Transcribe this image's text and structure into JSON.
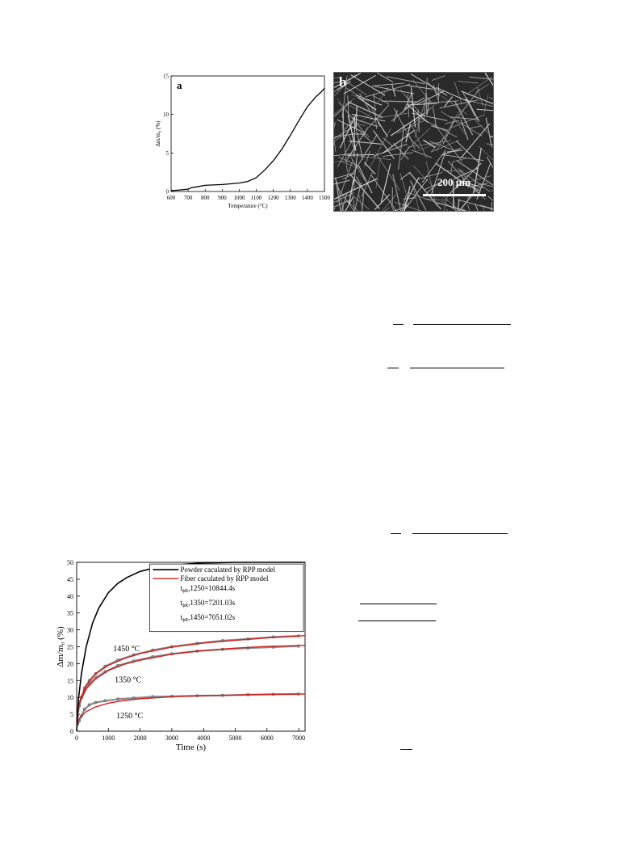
{
  "colors": {
    "fiber_red": "#d62020",
    "powder_black": "#000000",
    "exp_gray": "#8a8a8a"
  },
  "photo": {
    "label": "b",
    "scale_text": "200 µm"
  },
  "chart_data": [
    {
      "type": "line",
      "label": "a",
      "xlabel": "Temperature (°C)",
      "ylabel": "Δm/m₀ (%)",
      "xlim": [
        600,
        1500
      ],
      "ylim": [
        0,
        15
      ],
      "xticks": [
        600,
        700,
        800,
        900,
        1000,
        1100,
        1200,
        1300,
        1400,
        1500
      ],
      "yticks": [
        0,
        5,
        10,
        15
      ],
      "series": [
        {
          "x": [
            600,
            650,
            700,
            720,
            750,
            800,
            850,
            900,
            950,
            1000,
            1050,
            1100,
            1150,
            1200,
            1250,
            1300,
            1350,
            1400,
            1450,
            1480,
            1500
          ],
          "y": [
            0.1,
            0.2,
            0.3,
            0.5,
            0.6,
            0.8,
            0.85,
            0.9,
            1.0,
            1.1,
            1.3,
            1.8,
            2.8,
            4.0,
            5.5,
            7.3,
            9.2,
            11.0,
            12.3,
            12.9,
            13.4
          ]
        }
      ]
    },
    {
      "type": "line",
      "xlabel": "Time (s)",
      "ylabel": "Δm/m₀ (%)",
      "xlim": [
        0,
        7200
      ],
      "ylim": [
        0,
        50
      ],
      "xticks": [
        0,
        1000,
        2000,
        3000,
        4000,
        5000,
        6000,
        7000
      ],
      "yticks": [
        0,
        5,
        10,
        15,
        20,
        25,
        30,
        35,
        40,
        45,
        50
      ],
      "legend": {
        "placement": "top-right",
        "entries": [
          "Powder caculated by RPP model",
          "Fiber caculated by RPP model"
        ],
        "params": [
          "t",
          "ϕR",
          ",1250=10844.4s",
          ",1350=7201.03s",
          ",1450=7051.02s"
        ]
      },
      "annotations": [
        "1450 °C",
        "1350 °C",
        "1250 °C"
      ],
      "powder": {
        "x": [
          0,
          50,
          150,
          300,
          500,
          700,
          1000,
          1300,
          1600,
          2000,
          2500,
          3000,
          3500,
          4000,
          4500,
          5000,
          5500,
          6000,
          7200
        ],
        "y": [
          0,
          9,
          17,
          25,
          32,
          36.5,
          41,
          43.8,
          45.6,
          47.3,
          48.5,
          49.1,
          49.5,
          49.8,
          49.9,
          50,
          50,
          50,
          50
        ]
      },
      "fiber_fits": [
        {
          "temp": 1450,
          "x": [
            0,
            100,
            300,
            600,
            1000,
            1500,
            2000,
            3000,
            4000,
            5000,
            6000,
            7200
          ],
          "y": [
            5,
            9,
            13.5,
            17,
            19.5,
            21.5,
            23,
            24.9,
            26.1,
            26.9,
            27.6,
            28.3
          ]
        },
        {
          "temp": 1350,
          "x": [
            0,
            100,
            300,
            600,
            1000,
            1500,
            2000,
            3000,
            4000,
            5000,
            6000,
            7200
          ],
          "y": [
            5,
            8.5,
            12.5,
            15.5,
            18,
            19.8,
            21,
            22.8,
            23.9,
            24.6,
            25.1,
            25.4
          ]
        },
        {
          "temp": 1250,
          "x": [
            0,
            100,
            300,
            600,
            1000,
            1500,
            2000,
            3000,
            4000,
            5000,
            6000,
            7200
          ],
          "y": [
            2.5,
            4,
            5.8,
            7.2,
            8.3,
            9.1,
            9.6,
            10.2,
            10.5,
            10.7,
            10.9,
            11
          ]
        }
      ],
      "experimental": [
        {
          "temp": 1450,
          "x": [
            30,
            80,
            150,
            250,
            400,
            600,
            900,
            1300,
            1800,
            2400,
            3000,
            3800,
            4600,
            5400,
            6200,
            7000
          ],
          "y": [
            4.5,
            7.5,
            10,
            12.8,
            15,
            17,
            19.2,
            21,
            22.6,
            24,
            25,
            26,
            26.8,
            27.3,
            27.9,
            28.2
          ]
        },
        {
          "temp": 1350,
          "x": [
            30,
            80,
            150,
            250,
            400,
            600,
            900,
            1300,
            1800,
            2400,
            3000,
            3800,
            4600,
            5400,
            6200,
            7000
          ],
          "y": [
            6,
            8,
            10,
            12,
            14,
            15.8,
            17.6,
            19.4,
            20.8,
            22,
            22.9,
            23.7,
            24.2,
            24.6,
            24.9,
            25.2
          ]
        },
        {
          "temp": 1250,
          "x": [
            30,
            80,
            150,
            250,
            400,
            600,
            900,
            1300,
            1800,
            2400,
            3000,
            3800,
            4600,
            5400,
            6200,
            7000
          ],
          "y": [
            2,
            3,
            4.5,
            6.5,
            7.8,
            8.5,
            9,
            9.5,
            9.8,
            10.2,
            10.3,
            10.5,
            10.6,
            10.8,
            10.9,
            11
          ]
        }
      ]
    }
  ]
}
